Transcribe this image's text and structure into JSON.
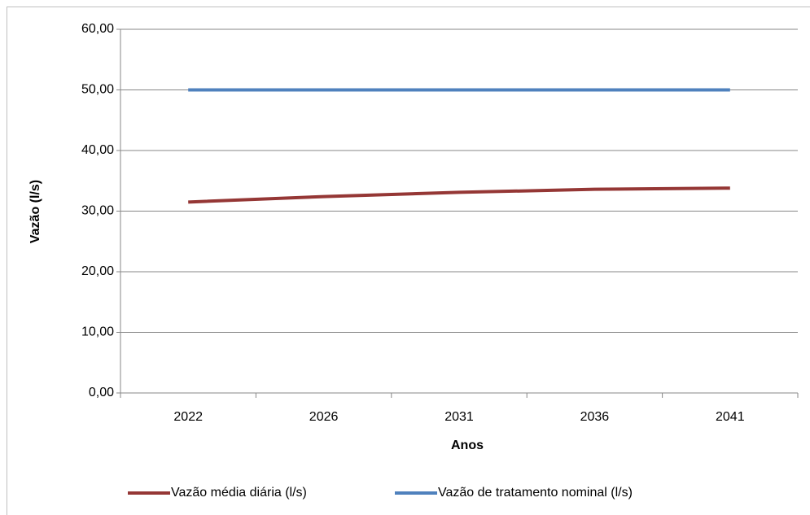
{
  "chart_data": {
    "type": "line",
    "x_label": "Anos",
    "y_label": "Vazão (l/s)",
    "categories": [
      "2022",
      "2026",
      "2031",
      "2036",
      "2041"
    ],
    "series": [
      {
        "name": "Vazão média diária (l/s)",
        "color": "#953735",
        "values": [
          31.5,
          32.4,
          33.1,
          33.6,
          33.8
        ]
      },
      {
        "name": "Vazão de tratamento nominal (l/s)",
        "color": "#4f81bd",
        "values": [
          50,
          50,
          50,
          50,
          50
        ]
      }
    ],
    "ylim": [
      0,
      60
    ],
    "yticks": [
      {
        "value": 0,
        "label": "0,00"
      },
      {
        "value": 10,
        "label": "10,00"
      },
      {
        "value": 20,
        "label": "20,00"
      },
      {
        "value": 30,
        "label": "30,00"
      },
      {
        "value": 40,
        "label": "40,00"
      },
      {
        "value": 50,
        "label": "50,00"
      },
      {
        "value": 60,
        "label": "60,00"
      }
    ],
    "grid": true,
    "legend": "bottom"
  }
}
